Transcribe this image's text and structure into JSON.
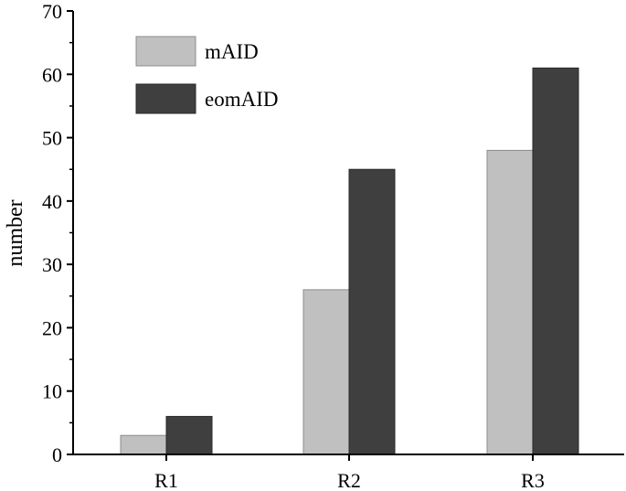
{
  "chart_data": {
    "type": "bar",
    "categories": [
      "R1",
      "R2",
      "R3"
    ],
    "series": [
      {
        "name": "mAID",
        "values": [
          3,
          26,
          48
        ],
        "color": "#c0c0c0"
      },
      {
        "name": "eomAID",
        "values": [
          6,
          45,
          61
        ],
        "color": "#3f3f3f"
      }
    ],
    "ylabel": "number",
    "xlabel": "",
    "ylim": [
      0,
      70
    ],
    "yticks": [
      0,
      10,
      20,
      30,
      40,
      50,
      60,
      70
    ],
    "grid": false,
    "legend_position": "top-left"
  }
}
